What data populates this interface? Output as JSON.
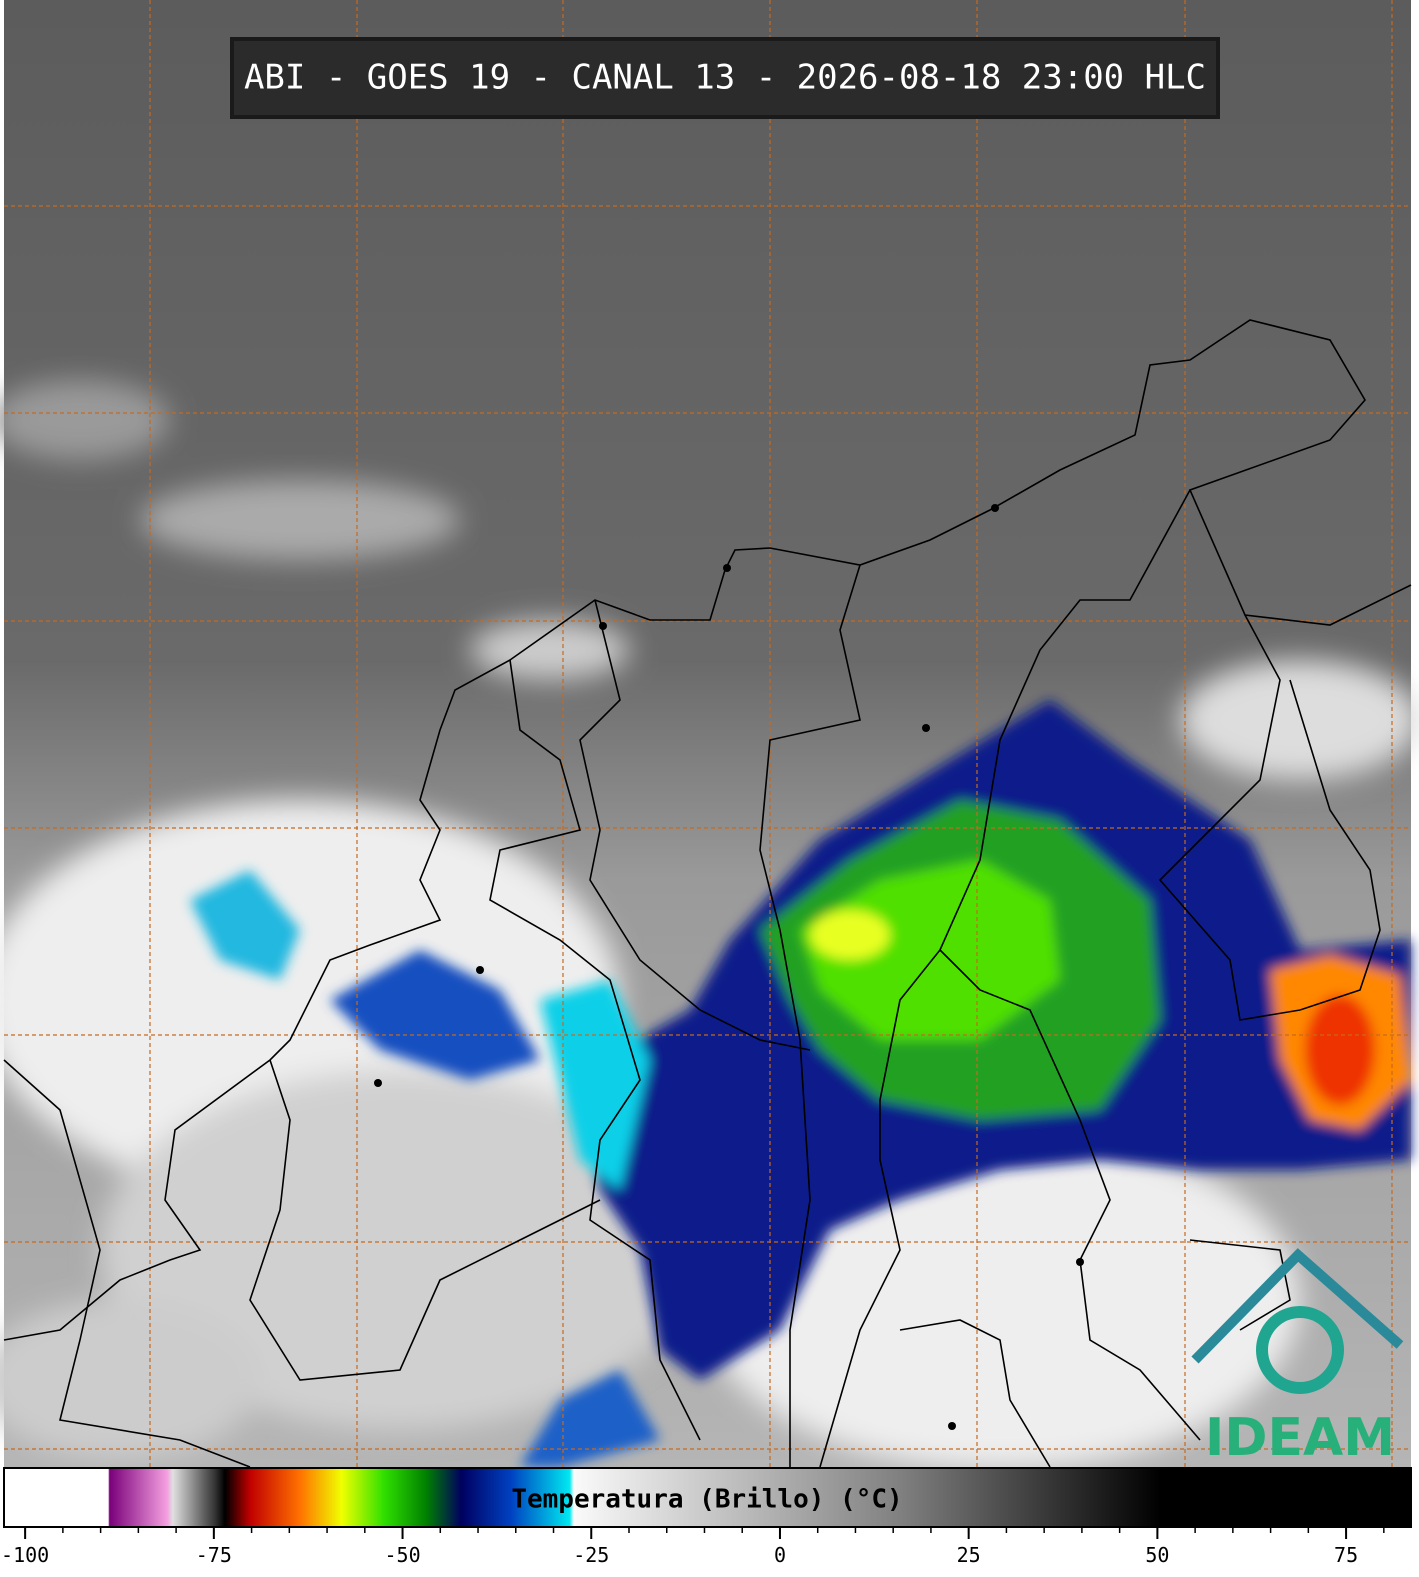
{
  "header": {
    "title": "ABI - GOES 19 - CANAL 13 - 2026-08-18 23:00 HLC"
  },
  "colorbar": {
    "label": "Temperatura (Brillo) (°C)",
    "lim": [
      -102.8,
      83.6
    ],
    "ticks": [
      -100,
      -75,
      -50,
      -25,
      0,
      25,
      50,
      75
    ]
  },
  "logo": {
    "text": "IDEAM"
  }
}
